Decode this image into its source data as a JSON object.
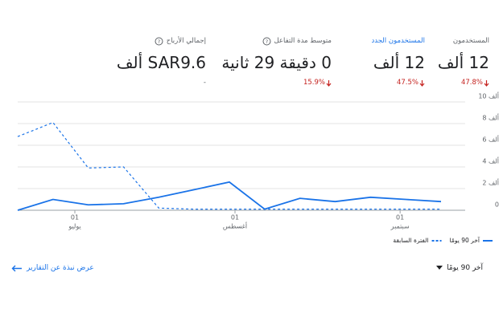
{
  "metrics": [
    {
      "label": "المستخدمون",
      "value": "12 ألف",
      "change": "47.8%"
    },
    {
      "label": "المستخدمون الجدد",
      "value": "12 ألف",
      "change": "47.5%"
    },
    {
      "label": "متوسط مدة التفاعل",
      "value": "0 دقيقة 29 ثانية",
      "change": "15.9%"
    },
    {
      "label": "إجمالي الأرباح",
      "value": "SAR9.6 ألف",
      "change": "-"
    }
  ],
  "chart_data": {
    "type": "line",
    "categories": [
      null,
      null,
      null,
      null,
      null,
      null,
      null,
      null,
      null,
      null,
      null,
      null,
      null
    ],
    "series": [
      {
        "name": "آخر 90 يومًا",
        "color": "#1a73e8",
        "dashed": false,
        "values": [
          0,
          1000,
          500,
          600,
          1200,
          1900,
          2600,
          100,
          1100,
          800,
          1200,
          1000,
          800
        ]
      },
      {
        "name": "الفترة السابقة",
        "color": "#1a73e8",
        "dashed": true,
        "values": [
          6800,
          8100,
          3900,
          4000,
          200,
          100,
          100,
          100,
          100,
          100,
          100,
          100,
          100
        ]
      }
    ],
    "ylim": [
      0,
      10000
    ],
    "yticks": [
      0,
      {
        "value": 2000,
        "label": "2 ألف"
      },
      {
        "value": 4000,
        "label": "4 ألف"
      },
      {
        "value": 6000,
        "label": "6 ألف"
      },
      {
        "value": 8000,
        "label": "8 ألف"
      },
      {
        "value": 10000,
        "label": "10 ألف"
      }
    ],
    "x_tick_labels": [
      {
        "day": "01",
        "month": "يوليو"
      },
      {
        "day": "01",
        "month": "أغسطس"
      },
      {
        "day": "01",
        "month": "سبتمبر"
      }
    ],
    "grid": true
  },
  "footer": {
    "period": "آخر 90 يومًا",
    "link": "عرض نبذة عن التقارير"
  }
}
